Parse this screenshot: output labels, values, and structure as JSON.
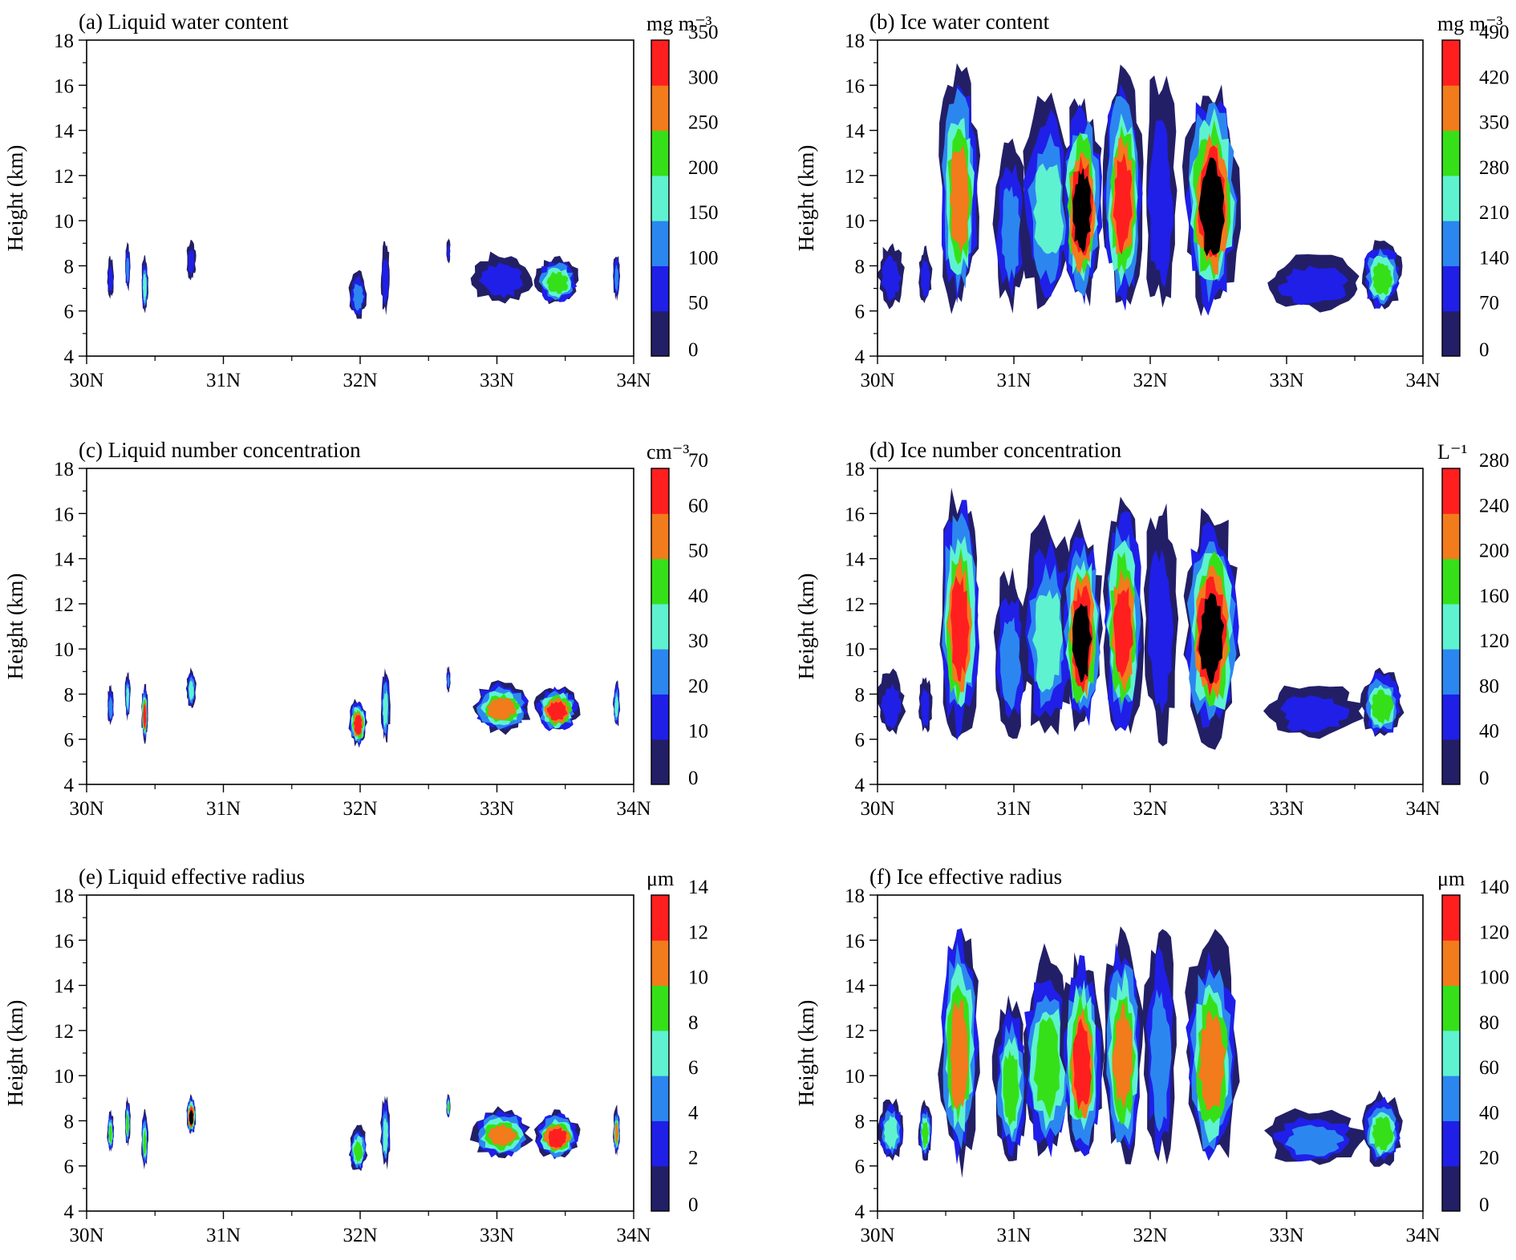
{
  "chart_data": [
    {
      "type": "heatmap",
      "panel": "a",
      "title": "(a) Liquid water content",
      "ylabel": "Height (km)",
      "ylim": [
        4,
        18
      ],
      "yticks": [
        4,
        6,
        8,
        10,
        12,
        14,
        16,
        18
      ],
      "xticks": [
        "30N",
        "31N",
        "32N",
        "33N",
        "34N"
      ],
      "xlim": [
        30,
        34
      ],
      "colorbar_unit": "mg m⁻³",
      "colorbar_labels": [
        "0",
        "50",
        "100",
        "150",
        "200",
        "250",
        "300",
        "350"
      ],
      "features": [
        [
          30.15,
          30.2,
          6.6,
          8.4,
          1
        ],
        [
          30.28,
          30.32,
          6.9,
          9.0,
          2
        ],
        [
          30.4,
          30.45,
          5.9,
          8.4,
          3
        ],
        [
          30.73,
          30.8,
          7.4,
          9.1,
          1
        ],
        [
          31.92,
          32.05,
          5.7,
          7.8,
          2
        ],
        [
          32.15,
          32.22,
          5.9,
          9.1,
          1
        ],
        [
          32.63,
          32.66,
          8.1,
          9.2,
          1
        ],
        [
          32.82,
          33.25,
          6.3,
          8.6,
          1
        ],
        [
          33.28,
          33.6,
          6.3,
          8.4,
          4
        ],
        [
          33.85,
          33.9,
          6.5,
          8.6,
          2
        ]
      ]
    },
    {
      "type": "heatmap",
      "panel": "b",
      "title": "(b) Ice water content",
      "ylabel": "Height (km)",
      "ylim": [
        4,
        18
      ],
      "yticks": [
        4,
        6,
        8,
        10,
        12,
        14,
        16,
        18
      ],
      "xticks": [
        "30N",
        "31N",
        "32N",
        "33N",
        "34N"
      ],
      "xlim": [
        30,
        34
      ],
      "colorbar_unit": "mg m⁻³",
      "colorbar_labels": [
        "0",
        "70",
        "140",
        "210",
        "280",
        "350",
        "420",
        "490"
      ],
      "features": [
        [
          30.0,
          30.2,
          6.2,
          9.0,
          1
        ],
        [
          30.3,
          30.4,
          6.3,
          8.8,
          1
        ],
        [
          30.45,
          30.75,
          6.0,
          17.0,
          5
        ],
        [
          30.85,
          31.1,
          6.2,
          13.5,
          2
        ],
        [
          31.05,
          31.45,
          6.2,
          15.5,
          3
        ],
        [
          31.35,
          31.65,
          6.3,
          15.5,
          7
        ],
        [
          31.65,
          31.95,
          6.1,
          16.5,
          6
        ],
        [
          31.95,
          32.2,
          6.0,
          16.7,
          1
        ],
        [
          32.25,
          32.65,
          5.9,
          16.2,
          7
        ],
        [
          32.85,
          33.55,
          6.0,
          8.5,
          1
        ],
        [
          33.55,
          33.85,
          6.0,
          9.2,
          4
        ]
      ]
    },
    {
      "type": "heatmap",
      "panel": "c",
      "title": "(c) Liquid number concentration",
      "ylabel": "Height (km)",
      "ylim": [
        4,
        18
      ],
      "yticks": [
        4,
        6,
        8,
        10,
        12,
        14,
        16,
        18
      ],
      "xticks": [
        "30N",
        "31N",
        "32N",
        "33N",
        "34N"
      ],
      "xlim": [
        30,
        34
      ],
      "colorbar_unit": "cm⁻³",
      "colorbar_labels": [
        "0",
        "10",
        "20",
        "30",
        "40",
        "50",
        "60",
        "70"
      ],
      "features": [
        [
          30.15,
          30.2,
          6.6,
          8.4,
          2
        ],
        [
          30.28,
          30.32,
          6.9,
          9.0,
          3
        ],
        [
          30.4,
          30.45,
          5.9,
          8.4,
          6
        ],
        [
          30.73,
          30.8,
          7.4,
          9.1,
          3
        ],
        [
          31.92,
          32.05,
          5.7,
          7.8,
          6
        ],
        [
          32.15,
          32.22,
          5.9,
          9.1,
          3
        ],
        [
          32.63,
          32.66,
          8.1,
          9.2,
          2
        ],
        [
          32.82,
          33.25,
          6.3,
          8.6,
          5
        ],
        [
          33.28,
          33.6,
          6.3,
          8.4,
          6
        ],
        [
          33.85,
          33.9,
          6.5,
          8.6,
          3
        ]
      ]
    },
    {
      "type": "heatmap",
      "panel": "d",
      "title": "(d) Ice number concentration",
      "ylabel": "Height (km)",
      "ylim": [
        4,
        18
      ],
      "yticks": [
        4,
        6,
        8,
        10,
        12,
        14,
        16,
        18
      ],
      "xticks": [
        "30N",
        "31N",
        "32N",
        "33N",
        "34N"
      ],
      "xlim": [
        30,
        34
      ],
      "colorbar_unit": "L⁻¹",
      "colorbar_labels": [
        "0",
        "40",
        "80",
        "120",
        "160",
        "200",
        "240",
        "280"
      ],
      "features": [
        [
          30.0,
          30.2,
          6.2,
          9.0,
          1
        ],
        [
          30.3,
          30.4,
          6.3,
          8.8,
          1
        ],
        [
          30.45,
          30.75,
          6.0,
          17.0,
          6
        ],
        [
          30.85,
          31.1,
          6.2,
          13.5,
          2
        ],
        [
          31.05,
          31.45,
          6.2,
          15.5,
          3
        ],
        [
          31.35,
          31.65,
          6.3,
          15.5,
          7
        ],
        [
          31.65,
          31.95,
          6.1,
          16.5,
          6
        ],
        [
          31.95,
          32.2,
          6.0,
          16.7,
          1
        ],
        [
          32.25,
          32.65,
          5.9,
          16.2,
          7
        ],
        [
          32.85,
          33.55,
          6.0,
          8.5,
          1
        ],
        [
          33.55,
          33.85,
          6.0,
          9.2,
          4
        ]
      ]
    },
    {
      "type": "heatmap",
      "panel": "e",
      "title": "(e) Liquid effective radius",
      "ylabel": "Height (km)",
      "ylim": [
        4,
        18
      ],
      "yticks": [
        4,
        6,
        8,
        10,
        12,
        14,
        16,
        18
      ],
      "xticks": [
        "30N",
        "31N",
        "32N",
        "33N",
        "34N"
      ],
      "xlim": [
        30,
        34
      ],
      "colorbar_unit": "μm",
      "colorbar_labels": [
        "0",
        "2",
        "4",
        "6",
        "8",
        "10",
        "12",
        "14"
      ],
      "features": [
        [
          30.15,
          30.2,
          6.6,
          8.4,
          4
        ],
        [
          30.28,
          30.32,
          6.9,
          9.0,
          4
        ],
        [
          30.4,
          30.45,
          5.9,
          8.4,
          4
        ],
        [
          30.73,
          30.8,
          7.4,
          9.1,
          7
        ],
        [
          31.92,
          32.05,
          5.7,
          7.8,
          4
        ],
        [
          32.15,
          32.22,
          5.9,
          9.1,
          3
        ],
        [
          32.63,
          32.66,
          8.1,
          9.2,
          4
        ],
        [
          32.82,
          33.25,
          6.3,
          8.6,
          5
        ],
        [
          33.28,
          33.6,
          6.3,
          8.4,
          6
        ],
        [
          33.85,
          33.9,
          6.5,
          8.6,
          5
        ]
      ]
    },
    {
      "type": "heatmap",
      "panel": "f",
      "title": "(f) Ice effective radius",
      "ylabel": "Height (km)",
      "ylim": [
        4,
        18
      ],
      "yticks": [
        4,
        6,
        8,
        10,
        12,
        14,
        16,
        18
      ],
      "xticks": [
        "30N",
        "31N",
        "32N",
        "33N",
        "34N"
      ],
      "xlim": [
        30,
        34
      ],
      "colorbar_unit": "μm",
      "colorbar_labels": [
        "0",
        "20",
        "40",
        "60",
        "80",
        "100",
        "120",
        "140"
      ],
      "features": [
        [
          30.0,
          30.2,
          6.2,
          9.0,
          3
        ],
        [
          30.3,
          30.4,
          6.3,
          8.8,
          4
        ],
        [
          30.45,
          30.75,
          6.0,
          17.0,
          5
        ],
        [
          30.85,
          31.1,
          6.2,
          13.5,
          4
        ],
        [
          31.05,
          31.45,
          6.2,
          15.5,
          4
        ],
        [
          31.35,
          31.65,
          6.3,
          15.5,
          6
        ],
        [
          31.65,
          31.95,
          6.1,
          16.5,
          5
        ],
        [
          31.95,
          32.2,
          6.0,
          16.7,
          2
        ],
        [
          32.25,
          32.65,
          5.9,
          16.2,
          5
        ],
        [
          32.85,
          33.55,
          6.0,
          8.5,
          2
        ],
        [
          33.55,
          33.85,
          6.0,
          9.2,
          4
        ]
      ]
    }
  ],
  "colormap": [
    "#231f66",
    "#1f1fe8",
    "#2c86f0",
    "#5ef2d0",
    "#36e018",
    "#f27b1c",
    "#ff1f1f"
  ]
}
